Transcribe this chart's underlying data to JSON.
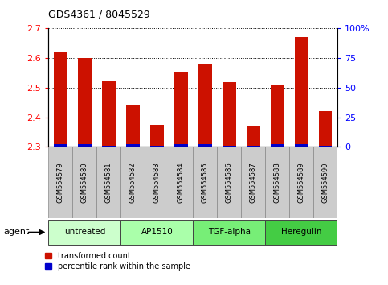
{
  "title": "GDS4361 / 8045529",
  "samples": [
    "GSM554579",
    "GSM554580",
    "GSM554581",
    "GSM554582",
    "GSM554583",
    "GSM554584",
    "GSM554585",
    "GSM554586",
    "GSM554587",
    "GSM554588",
    "GSM554589",
    "GSM554590"
  ],
  "red_values": [
    2.62,
    2.6,
    2.525,
    2.44,
    2.375,
    2.55,
    2.58,
    2.52,
    2.37,
    2.51,
    2.67,
    2.42
  ],
  "blue_values": [
    2,
    2,
    1,
    2,
    1,
    2,
    2,
    1,
    1,
    2,
    2,
    1
  ],
  "y_min": 2.3,
  "y_max": 2.7,
  "y_ticks": [
    2.3,
    2.4,
    2.5,
    2.6,
    2.7
  ],
  "y2_ticks": [
    0,
    25,
    50,
    75,
    100
  ],
  "y2_labels": [
    "0",
    "25",
    "50",
    "75",
    "100%"
  ],
  "agents": [
    {
      "label": "untreated",
      "start": 0,
      "end": 3
    },
    {
      "label": "AP1510",
      "start": 3,
      "end": 6
    },
    {
      "label": "TGF-alpha",
      "start": 6,
      "end": 9
    },
    {
      "label": "Heregulin",
      "start": 9,
      "end": 12
    }
  ],
  "agent_colors": [
    "#ccffcc",
    "#aaffaa",
    "#77ee77",
    "#44cc44"
  ],
  "bar_color_red": "#cc1100",
  "bar_color_blue": "#0000cc",
  "bar_width": 0.55,
  "base": 2.3,
  "legend_red": "transformed count",
  "legend_blue": "percentile rank within the sample",
  "agent_label": "agent"
}
